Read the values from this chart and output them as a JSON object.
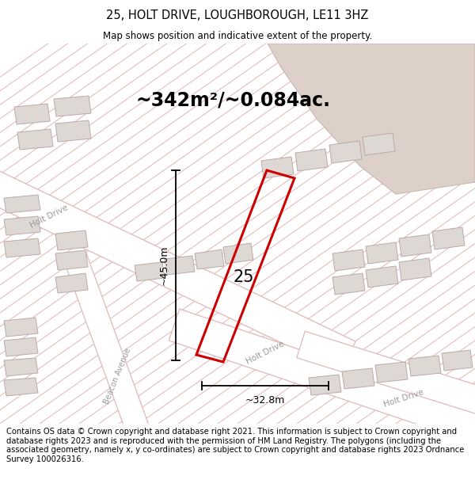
{
  "title": "25, HOLT DRIVE, LOUGHBOROUGH, LE11 3HZ",
  "subtitle": "Map shows position and indicative extent of the property.",
  "area_label": "~342m²/~0.084ac.",
  "number_label": "25",
  "dim_vertical": "~45.0m",
  "dim_horizontal": "~32.8m",
  "footer": "Contains OS data © Crown copyright and database right 2021. This information is subject to Crown copyright and database rights 2023 and is reproduced with the permission of HM Land Registry. The polygons (including the associated geometry, namely x, y co-ordinates) are subject to Crown copyright and database rights 2023 Ordnance Survey 100026316.",
  "bg_color": "#f2eeeb",
  "road_color": "#ffffff",
  "road_border_color": "#e0b8b8",
  "building_fill": "#ddd8d4",
  "building_border": "#bbaaa8",
  "plot_border": "#cc0000",
  "top_right_fill": "#ddd0c8",
  "top_right_border": "#c8b8b0",
  "hatch_line_color": "#e0b0b0",
  "street_label_color": "#999999",
  "dim_line_color": "#000000",
  "title_color": "#000000",
  "footer_color": "#000000",
  "white": "#ffffff",
  "footer_fontsize": 7.2,
  "title_fontsize": 10.5,
  "subtitle_fontsize": 8.5,
  "area_label_fontsize": 17,
  "number_fontsize": 15,
  "street_fontsize": 7.5
}
